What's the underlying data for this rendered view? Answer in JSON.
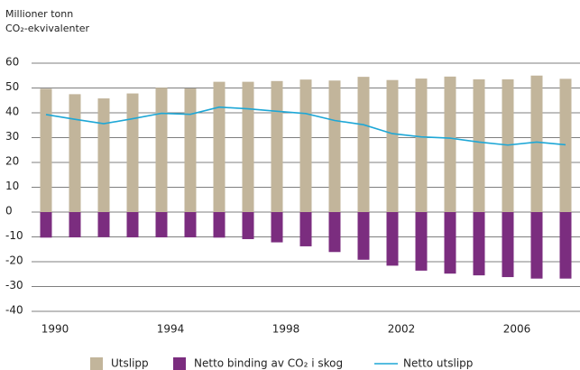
{
  "chart_data": {
    "type": "bar",
    "title": "Millioner tonn",
    "subtitle": "CO₂-ekvivalenter",
    "categories": [
      "1990",
      null,
      null,
      null,
      "1994",
      null,
      null,
      null,
      "1998",
      null,
      null,
      null,
      "2002",
      null,
      null,
      null,
      "2006",
      null,
      null
    ],
    "series": [
      {
        "name": "Utslipp",
        "type": "bar",
        "color": "#c2b59b",
        "values": [
          49.7,
          47.5,
          45.8,
          47.8,
          50.1,
          49.8,
          52.5,
          52.5,
          52.8,
          53.4,
          53.0,
          54.5,
          53.2,
          53.8,
          54.6,
          53.5,
          53.5,
          55.0,
          53.7
        ]
      },
      {
        "name": "Netto binding av CO₂ i skog",
        "type": "bar",
        "color": "#7b2d7f",
        "values": [
          -10.3,
          -10.2,
          -10.1,
          -10.2,
          -10.2,
          -10.2,
          -10.3,
          -10.9,
          -12.2,
          -13.8,
          -16.1,
          -19.2,
          -21.6,
          -23.6,
          -24.8,
          -25.5,
          -26.2,
          -26.8,
          -26.8
        ]
      },
      {
        "name": "Netto utslipp",
        "type": "line",
        "color": "#1ea7d6",
        "values": [
          39.3,
          37.4,
          35.6,
          37.6,
          39.8,
          39.4,
          42.3,
          41.6,
          40.6,
          39.7,
          36.9,
          35.2,
          31.6,
          30.3,
          29.8,
          28.2,
          27.0,
          28.2,
          27.1
        ]
      }
    ],
    "ylim": [
      -40,
      60
    ],
    "yticks": [
      -40,
      -30,
      -20,
      -10,
      0,
      10,
      20,
      30,
      40,
      50,
      60
    ],
    "grid": true,
    "legend": "bottom"
  }
}
